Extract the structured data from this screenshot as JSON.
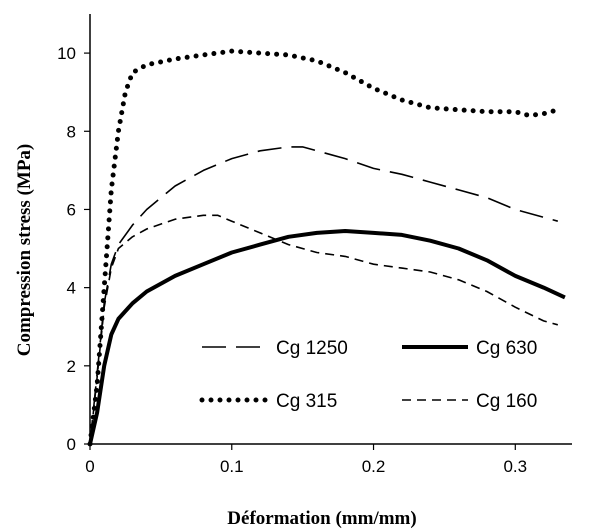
{
  "chart_data": {
    "type": "line",
    "title": "",
    "xlabel": "Déformation (mm/mm)",
    "ylabel": "Compression stress (MPa)",
    "xlim": [
      0,
      0.34
    ],
    "ylim": [
      0,
      11
    ],
    "xticks": [
      "0",
      "0.1",
      "0.2",
      "0.3"
    ],
    "yticks": [
      "0",
      "2",
      "4",
      "6",
      "8",
      "10"
    ],
    "grid": false,
    "legend_position": "bottom-right",
    "series": [
      {
        "name": "Cg 1250",
        "style": "long-dash",
        "x": [
          0,
          0.005,
          0.01,
          0.015,
          0.02,
          0.03,
          0.04,
          0.06,
          0.08,
          0.1,
          0.12,
          0.14,
          0.15,
          0.16,
          0.18,
          0.2,
          0.22,
          0.24,
          0.26,
          0.28,
          0.3,
          0.32,
          0.33
        ],
        "values": [
          0,
          1.8,
          3.6,
          4.6,
          5.1,
          5.6,
          6.0,
          6.6,
          7.0,
          7.3,
          7.5,
          7.6,
          7.6,
          7.5,
          7.3,
          7.05,
          6.9,
          6.7,
          6.5,
          6.3,
          6.0,
          5.8,
          5.7
        ]
      },
      {
        "name": "Cg 630",
        "style": "solid-thick",
        "x": [
          0,
          0.005,
          0.01,
          0.015,
          0.02,
          0.03,
          0.04,
          0.06,
          0.08,
          0.1,
          0.12,
          0.14,
          0.16,
          0.18,
          0.2,
          0.22,
          0.24,
          0.26,
          0.28,
          0.3,
          0.32,
          0.335
        ],
        "values": [
          0,
          0.8,
          2.0,
          2.8,
          3.2,
          3.6,
          3.9,
          4.3,
          4.6,
          4.9,
          5.1,
          5.3,
          5.4,
          5.45,
          5.4,
          5.35,
          5.2,
          5.0,
          4.7,
          4.3,
          4.0,
          3.75
        ]
      },
      {
        "name": "Cg 315",
        "style": "dotted",
        "x": [
          0,
          0.005,
          0.01,
          0.015,
          0.02,
          0.025,
          0.03,
          0.04,
          0.06,
          0.08,
          0.1,
          0.12,
          0.14,
          0.16,
          0.18,
          0.2,
          0.22,
          0.24,
          0.26,
          0.28,
          0.3,
          0.31,
          0.32,
          0.33
        ],
        "values": [
          0,
          1.5,
          4.0,
          6.5,
          8.0,
          9.0,
          9.5,
          9.7,
          9.85,
          9.95,
          10.05,
          10.0,
          9.95,
          9.8,
          9.5,
          9.1,
          8.8,
          8.6,
          8.55,
          8.5,
          8.5,
          8.4,
          8.45,
          8.55
        ]
      },
      {
        "name": "Cg 160",
        "style": "short-dash",
        "x": [
          0,
          0.005,
          0.01,
          0.015,
          0.02,
          0.03,
          0.04,
          0.06,
          0.08,
          0.09,
          0.1,
          0.12,
          0.14,
          0.16,
          0.18,
          0.2,
          0.22,
          0.24,
          0.26,
          0.28,
          0.3,
          0.32,
          0.33
        ],
        "values": [
          0,
          1.7,
          3.5,
          4.5,
          5.0,
          5.3,
          5.5,
          5.75,
          5.85,
          5.85,
          5.7,
          5.4,
          5.1,
          4.9,
          4.8,
          4.6,
          4.5,
          4.4,
          4.2,
          3.9,
          3.5,
          3.15,
          3.05
        ]
      }
    ]
  }
}
